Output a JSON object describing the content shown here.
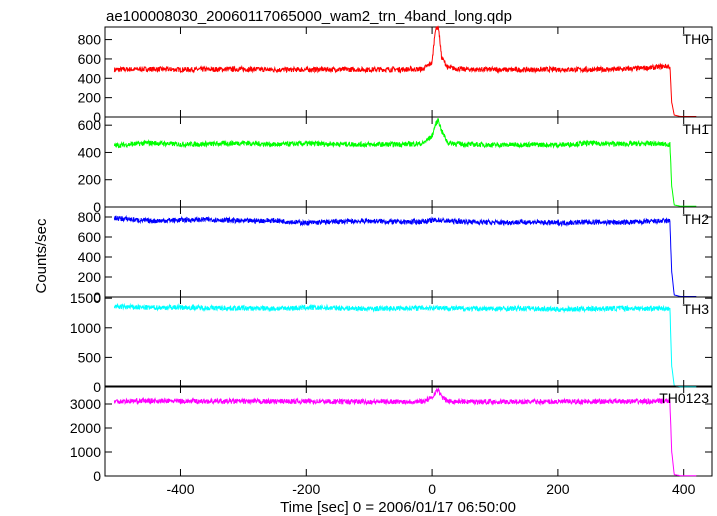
{
  "chart_data": {
    "type": "line",
    "title": "ae100008030_20060117065000_wam2_trn_4band_long.qdp",
    "xlabel": "Time [sec] 0 = 2006/01/17 06:50:00",
    "ylabel": "Counts/sec",
    "xlim": [
      -520,
      445
    ],
    "xticks": [
      "-400",
      "-200",
      "0",
      "200",
      "400"
    ],
    "xtick_values": [
      -400,
      -200,
      0,
      200,
      400
    ],
    "panels": [
      {
        "label": "TH0",
        "color": "#ff0000",
        "ylim": [
          0,
          930
        ],
        "yticks": [
          "0",
          "200",
          "400",
          "600",
          "800"
        ],
        "ytick_values": [
          0,
          200,
          400,
          600,
          800
        ],
        "series": {
          "x": [
            -505,
            -450,
            -400,
            -350,
            -300,
            -250,
            -200,
            -150,
            -100,
            -50,
            -15,
            0,
            5,
            10,
            15,
            25,
            50,
            100,
            150,
            200,
            250,
            300,
            350,
            370,
            378,
            381,
            385,
            395,
            410,
            420
          ],
          "values": [
            490,
            495,
            490,
            492,
            495,
            488,
            490,
            493,
            490,
            492,
            495,
            560,
            900,
            940,
            620,
            510,
            492,
            490,
            488,
            492,
            490,
            493,
            510,
            525,
            520,
            150,
            20,
            5,
            5,
            5
          ]
        }
      },
      {
        "label": "TH1",
        "color": "#00ff00",
        "ylim": [
          0,
          660
        ],
        "yticks": [
          "0",
          "200",
          "400",
          "600"
        ],
        "ytick_values": [
          0,
          200,
          400,
          600
        ],
        "series": {
          "x": [
            -505,
            -450,
            -400,
            -350,
            -300,
            -250,
            -200,
            -150,
            -100,
            -50,
            -15,
            0,
            5,
            10,
            15,
            25,
            50,
            100,
            150,
            200,
            250,
            300,
            350,
            370,
            378,
            381,
            385,
            395,
            410,
            420
          ],
          "values": [
            450,
            470,
            460,
            462,
            470,
            458,
            465,
            462,
            458,
            460,
            465,
            520,
            600,
            640,
            560,
            470,
            460,
            455,
            458,
            455,
            468,
            462,
            465,
            460,
            460,
            150,
            15,
            5,
            5,
            5
          ]
        }
      },
      {
        "label": "TH2",
        "color": "#0000ff",
        "ylim": [
          0,
          900
        ],
        "yticks": [
          "0",
          "200",
          "400",
          "600",
          "800"
        ],
        "ytick_values": [
          0,
          200,
          400,
          600,
          800
        ],
        "series": {
          "x": [
            -505,
            -450,
            -400,
            -350,
            -300,
            -250,
            -200,
            -150,
            -100,
            -50,
            -15,
            0,
            10,
            25,
            50,
            100,
            150,
            200,
            250,
            300,
            350,
            370,
            378,
            381,
            385,
            395,
            410,
            420
          ],
          "values": [
            790,
            760,
            770,
            775,
            760,
            765,
            740,
            755,
            760,
            750,
            755,
            765,
            770,
            760,
            755,
            745,
            750,
            740,
            750,
            745,
            755,
            760,
            760,
            250,
            20,
            5,
            5,
            5
          ]
        }
      },
      {
        "label": "TH3",
        "color": "#00ffff",
        "ylim": [
          0,
          1520
        ],
        "yticks": [
          "0",
          "500",
          "1000",
          "1500"
        ],
        "ytick_values": [
          0,
          500,
          1000,
          1500
        ],
        "series": {
          "x": [
            -505,
            -450,
            -400,
            -350,
            -300,
            -250,
            -200,
            -150,
            -100,
            -50,
            -15,
            0,
            10,
            25,
            50,
            100,
            150,
            200,
            250,
            300,
            350,
            370,
            378,
            381,
            385,
            395,
            410,
            420
          ],
          "values": [
            1360,
            1340,
            1345,
            1335,
            1330,
            1325,
            1340,
            1335,
            1320,
            1330,
            1335,
            1340,
            1345,
            1330,
            1325,
            1320,
            1330,
            1310,
            1320,
            1330,
            1325,
            1330,
            1330,
            350,
            20,
            5,
            5,
            5
          ]
        }
      },
      {
        "label": "TH0123",
        "color": "#ff00ff",
        "ylim": [
          0,
          3750
        ],
        "yticks": [
          "0",
          "1000",
          "2000",
          "3000"
        ],
        "ytick_values": [
          0,
          1000,
          2000,
          3000
        ],
        "series": {
          "x": [
            -505,
            -450,
            -400,
            -350,
            -300,
            -250,
            -200,
            -150,
            -100,
            -50,
            -15,
            0,
            5,
            10,
            15,
            25,
            50,
            100,
            150,
            200,
            250,
            300,
            350,
            370,
            378,
            381,
            385,
            395,
            410,
            420
          ],
          "values": [
            3110,
            3130,
            3120,
            3115,
            3110,
            3105,
            3115,
            3100,
            3095,
            3100,
            3110,
            3250,
            3500,
            3600,
            3300,
            3120,
            3100,
            3095,
            3090,
            3095,
            3100,
            3105,
            3110,
            3120,
            3120,
            1000,
            60,
            10,
            10,
            10
          ]
        }
      }
    ]
  }
}
